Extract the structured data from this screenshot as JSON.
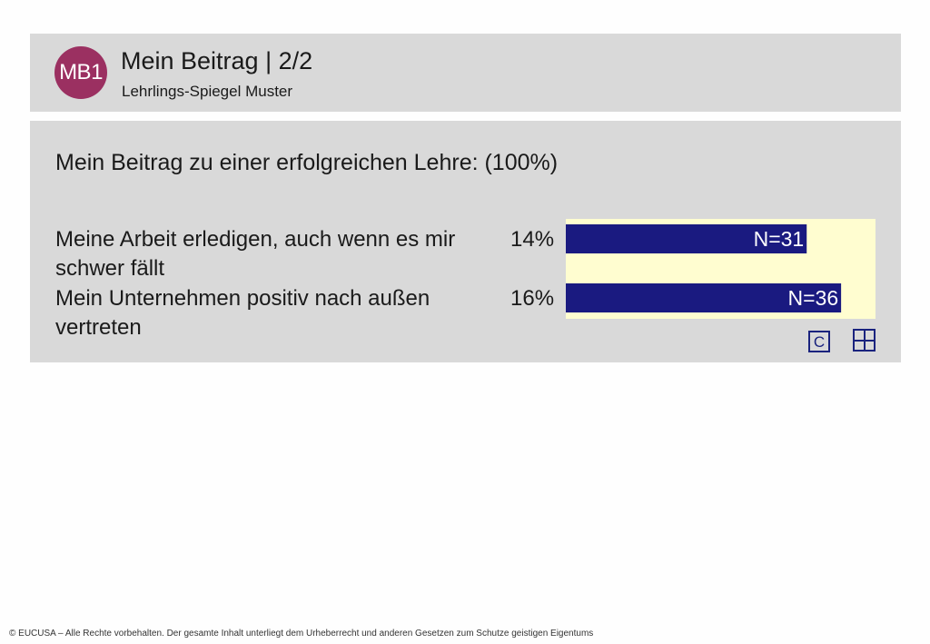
{
  "header": {
    "badge": "MB1",
    "title": "Mein Beitrag | 2/2",
    "subtitle": "Lehrlings-Spiegel Muster"
  },
  "question": "Mein Beitrag zu einer erfolgreichen Lehre: (100%)",
  "rows": [
    {
      "label": "Meine Arbeit erledigen, auch wenn es mir schwer fällt",
      "percent": "14%",
      "n_label": "N=31"
    },
    {
      "label": "Mein Unternehmen positiv nach außen vertreten",
      "percent": "16%",
      "n_label": "N=36"
    }
  ],
  "icons": {
    "c_label": "C"
  },
  "footer": "© EUCUSA – Alle Rechte vorbehalten. Der gesamte Inhalt unterliegt dem Urheberrecht und anderen Gesetzen zum Schutze geistigen Eigentums",
  "colors": {
    "badge": "#9b3061",
    "bar": "#1a1a80",
    "chart_background": "#fffdd0",
    "panel": "#d9d9d9"
  },
  "chart_data": {
    "type": "bar",
    "orientation": "horizontal",
    "categories": [
      "Meine Arbeit erledigen, auch wenn es mir schwer fällt",
      "Mein Unternehmen positiv nach außen vertreten"
    ],
    "values": [
      14,
      16
    ],
    "value_labels": [
      "14%",
      "16%"
    ],
    "n_labels": [
      "N=31",
      "N=36"
    ],
    "xlim": [
      0,
      18
    ],
    "title": "",
    "xlabel": "",
    "ylabel": "",
    "grid": false
  }
}
